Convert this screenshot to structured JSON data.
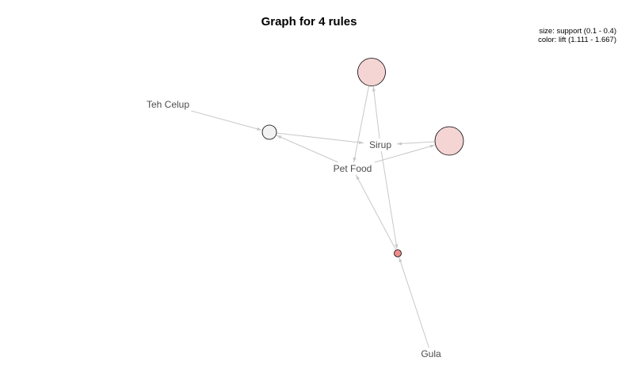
{
  "title": "Graph for 4 rules",
  "legend": {
    "size": "size: support (0.1 - 0.4)",
    "color": "color: lift (1.111 - 1.667)"
  },
  "items": [
    {
      "id": "teh-celup",
      "label": "Teh Celup"
    },
    {
      "id": "sirup",
      "label": "Sirup"
    },
    {
      "id": "pet-food",
      "label": "Pet Food"
    },
    {
      "id": "gula",
      "label": "Gula"
    }
  ],
  "rules": [
    {
      "id": "rule-1",
      "lhs": [
        "sirup"
      ],
      "rhs": "pet-food",
      "fill": "#f5d4d4"
    },
    {
      "id": "rule-2",
      "lhs": [
        "teh-celup",
        "pet-food"
      ],
      "rhs": "sirup",
      "fill": "#f2f2f2"
    },
    {
      "id": "rule-3",
      "lhs": [
        "pet-food"
      ],
      "rhs": "sirup",
      "fill": "#f5d4d4"
    },
    {
      "id": "rule-4",
      "lhs": [
        "gula",
        "sirup"
      ],
      "rhs": "pet-food",
      "fill": "#ee8c8c"
    }
  ],
  "colors": {
    "edge": "#c8c8c8",
    "node_stroke": "#000000",
    "label": "#4d4d4d"
  }
}
